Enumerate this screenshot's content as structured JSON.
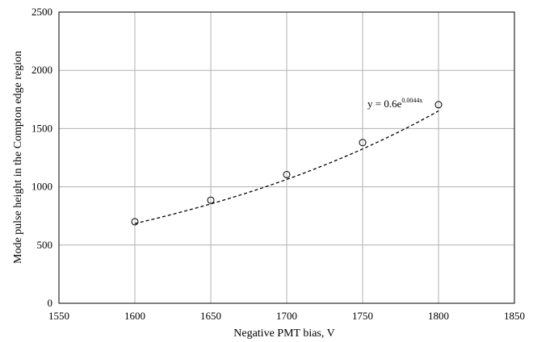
{
  "chart_data": {
    "type": "scatter",
    "title": "",
    "xlabel": "Negative PMT bias, V",
    "ylabel": "Mode pulse height in the Compton edge region",
    "xlim": [
      1550,
      1850
    ],
    "ylim": [
      0,
      2500
    ],
    "x_ticks": [
      1550,
      1600,
      1650,
      1700,
      1750,
      1800,
      1850
    ],
    "y_ticks": [
      0,
      500,
      1000,
      1500,
      2000,
      2500
    ],
    "x_tick_labels": [
      "1550",
      "1600",
      "1650",
      "1700",
      "1750",
      "1800",
      "1850"
    ],
    "y_tick_labels": [
      "0",
      "500",
      "1000",
      "1500",
      "2000",
      "2500"
    ],
    "grid": true,
    "legend": "none",
    "series": [
      {
        "x": [
          1600,
          1650,
          1700,
          1750,
          1800
        ],
        "y": [
          700,
          885,
          1105,
          1380,
          1705
        ],
        "marker": "open-circle",
        "color": "#000000"
      }
    ],
    "trendline": {
      "type": "exponential",
      "a": 0.6,
      "b": 0.0044,
      "style": "dashed",
      "color": "#000000",
      "x_range": [
        1600,
        1800
      ],
      "label_base": "y = 0.6e",
      "label_exp": "0.0044x"
    },
    "colors": {
      "grid": "#b0b0b0",
      "axis": "#000000",
      "marker": "#000000",
      "background": "#ffffff"
    }
  }
}
